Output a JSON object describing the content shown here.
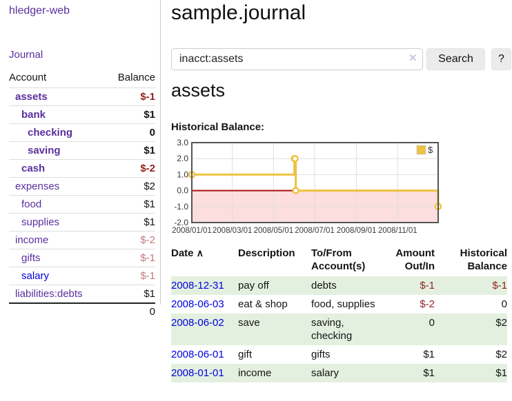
{
  "app": {
    "brand": "hledger-web",
    "nav_journal": "Journal"
  },
  "sidebar": {
    "header": {
      "account": "Account",
      "balance": "Balance"
    },
    "accounts": [
      {
        "name": "assets",
        "depth": 1,
        "bold": true,
        "link": "purple",
        "balance": "$-1",
        "neg": "strong"
      },
      {
        "name": "bank",
        "depth": 2,
        "bold": true,
        "link": "purple",
        "balance": "$1",
        "neg": "none"
      },
      {
        "name": "checking",
        "depth": 3,
        "bold": true,
        "link": "purple",
        "balance": "0",
        "neg": "none"
      },
      {
        "name": "saving",
        "depth": 3,
        "bold": true,
        "link": "purple",
        "balance": "$1",
        "neg": "none"
      },
      {
        "name": "cash",
        "depth": 2,
        "bold": true,
        "link": "purple",
        "balance": "$-2",
        "neg": "strong"
      },
      {
        "name": "expenses",
        "depth": 1,
        "bold": false,
        "link": "purple",
        "balance": "$2",
        "neg": "none"
      },
      {
        "name": "food",
        "depth": 2,
        "bold": false,
        "link": "purple",
        "balance": "$1",
        "neg": "none"
      },
      {
        "name": "supplies",
        "depth": 2,
        "bold": false,
        "link": "purple",
        "balance": "$1",
        "neg": "none"
      },
      {
        "name": "income",
        "depth": 1,
        "bold": false,
        "link": "purple",
        "balance": "$-2",
        "neg": "muted"
      },
      {
        "name": "gifts",
        "depth": 2,
        "bold": false,
        "link": "purple",
        "balance": "$-1",
        "neg": "muted"
      },
      {
        "name": "salary",
        "depth": 2,
        "bold": false,
        "link": "blue",
        "balance": "$-1",
        "neg": "muted"
      },
      {
        "name": "liabilities:debts",
        "depth": 1,
        "bold": false,
        "link": "purple",
        "balance": "$1",
        "neg": "none"
      }
    ],
    "total": "0"
  },
  "header": {
    "title": "sample.journal"
  },
  "search": {
    "value": "inacct:assets",
    "clear_icon": "✕",
    "button": "Search",
    "help_button": "?"
  },
  "account_page": {
    "heading": "assets",
    "chart_label": "Historical Balance:"
  },
  "chart_data": {
    "type": "line",
    "step": true,
    "title": "Historical Balance",
    "series": [
      {
        "name": "$",
        "color": "#edc240",
        "points": [
          [
            "2008-01-01",
            1
          ],
          [
            "2008-06-01",
            2
          ],
          [
            "2008-06-02",
            2
          ],
          [
            "2008-06-03",
            0
          ],
          [
            "2008-12-31",
            -1
          ]
        ]
      }
    ],
    "x_ticks": [
      "2008/01/01",
      "2008/03/01",
      "2008/05/01",
      "2008/07/01",
      "2008/09/01",
      "2008/11/01"
    ],
    "y_ticks": [
      3.0,
      2.0,
      1.0,
      0.0,
      -1.0,
      -2.0
    ],
    "xlim": [
      "2008-01-01",
      "2008-12-31"
    ],
    "ylim": [
      -2,
      3
    ],
    "grid": true,
    "negative_region": true,
    "legend": {
      "label": "$",
      "position": "top-right"
    }
  },
  "transactions": {
    "headers": {
      "date": "Date",
      "description": "Description",
      "accounts_l1": "To/From",
      "accounts_l2": "Account(s)",
      "amount_l1": "Amount",
      "amount_l2": "Out/In",
      "balance_l1": "Historical",
      "balance_l2": "Balance"
    },
    "sort_icon": "∧",
    "rows": [
      {
        "date": "2008-12-31",
        "description": "pay off",
        "accounts": "debts",
        "amount": "$-1",
        "amount_neg": true,
        "balance": "$-1",
        "balance_neg": true
      },
      {
        "date": "2008-06-03",
        "description": "eat & shop",
        "accounts": "food, supplies",
        "amount": "$-2",
        "amount_neg": true,
        "balance": "0",
        "balance_neg": false
      },
      {
        "date": "2008-06-02",
        "description": "save",
        "accounts": "saving, checking",
        "amount": "0",
        "amount_neg": false,
        "balance": "$2",
        "balance_neg": false
      },
      {
        "date": "2008-06-01",
        "description": "gift",
        "accounts": "gifts",
        "amount": "$1",
        "amount_neg": false,
        "balance": "$2",
        "balance_neg": false
      },
      {
        "date": "2008-01-01",
        "description": "income",
        "accounts": "salary",
        "amount": "$1",
        "amount_neg": false,
        "balance": "$1",
        "balance_neg": false
      }
    ]
  },
  "colors": {
    "link_purple": "#5a2f9d",
    "link_blue": "#0000e0",
    "negative_strong": "#941f1f",
    "negative_muted": "#c4767c",
    "row_green": "#e3f0df",
    "chart_gold": "#edc240",
    "chart_negative_fill": "#fcdede",
    "chart_zero_line": "#aa1111",
    "button_gray": "#ebebeb",
    "clear_icon": "#cfc5dd"
  }
}
